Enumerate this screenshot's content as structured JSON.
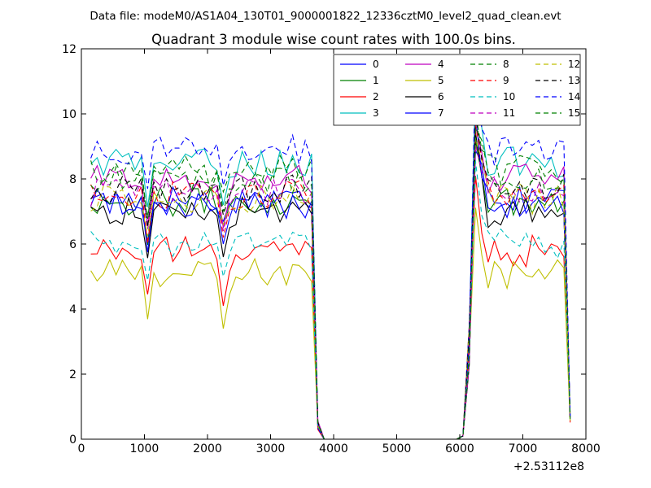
{
  "chart_data": {
    "type": "line",
    "suptitle": "Data file: modeM0/AS1A04_130T01_9000001822_12336cztM0_level2_quad_clean.evt",
    "title": "Quadrant 3 module wise count rates with 100.0s bins.",
    "xlabel": "",
    "ylabel": "",
    "x_offset_label": "+2.53112e8",
    "xlim": [
      0,
      8000
    ],
    "ylim": [
      0,
      12
    ],
    "xticks": [
      0,
      1000,
      2000,
      3000,
      4000,
      5000,
      6000,
      7000,
      8000
    ],
    "yticks": [
      0,
      2,
      4,
      6,
      8,
      10,
      12
    ],
    "legend_position": "top-right",
    "legend_columns": 4,
    "x": [
      150,
      250,
      350,
      450,
      550,
      650,
      750,
      850,
      950,
      1050,
      1150,
      1250,
      1350,
      1450,
      1550,
      1650,
      1750,
      1850,
      1950,
      2050,
      2150,
      2250,
      2350,
      2450,
      2550,
      2650,
      2750,
      2850,
      2950,
      3050,
      3150,
      3250,
      3350,
      3450,
      3550,
      3650,
      3750,
      3850,
      3950,
      4050,
      4150,
      4250,
      4350,
      4450,
      4550,
      4650,
      4750,
      4850,
      4950,
      5050,
      5150,
      5250,
      5350,
      5450,
      5550,
      5650,
      5750,
      5850,
      5950,
      6050,
      6150,
      6250,
      6350,
      6450,
      6550,
      6650,
      6750,
      6850,
      6950,
      7050,
      7150,
      7250,
      7350,
      7450,
      7550,
      7650,
      7750
    ],
    "series": [
      {
        "name": "0",
        "color": "#0000ff",
        "dashed": false,
        "base": 7.4,
        "dip": 6.7
      },
      {
        "name": "1",
        "color": "#008000",
        "dashed": false,
        "base": 7.3,
        "dip": 6.6
      },
      {
        "name": "2",
        "color": "#ff0000",
        "dashed": false,
        "base": 5.8,
        "dip": 4.1
      },
      {
        "name": "3",
        "color": "#00bfbf",
        "dashed": false,
        "base": 8.5,
        "dip": 7.2
      },
      {
        "name": "4",
        "color": "#bf00bf",
        "dashed": false,
        "base": 8.0,
        "dip": 6.5
      },
      {
        "name": "5",
        "color": "#bfbf00",
        "dashed": false,
        "base": 5.1,
        "dip": 3.4
      },
      {
        "name": "6",
        "color": "#000000",
        "dashed": false,
        "base": 7.0,
        "dip": 5.6
      },
      {
        "name": "7",
        "color": "#0000ff",
        "dashed": false,
        "base": 7.2,
        "dip": 6.0
      },
      {
        "name": "8",
        "color": "#008000",
        "dashed": true,
        "base": 8.3,
        "dip": 7.6
      },
      {
        "name": "9",
        "color": "#ff0000",
        "dashed": true,
        "base": 7.5,
        "dip": 6.2
      },
      {
        "name": "10",
        "color": "#00bfbf",
        "dashed": true,
        "base": 6.0,
        "dip": 5.0
      },
      {
        "name": "11",
        "color": "#bf00bf",
        "dashed": true,
        "base": 7.6,
        "dip": 6.4
      },
      {
        "name": "12",
        "color": "#bfbf00",
        "dashed": true,
        "base": 7.4,
        "dip": 6.6
      },
      {
        "name": "13",
        "color": "#000000",
        "dashed": true,
        "base": 7.7,
        "dip": 6.9
      },
      {
        "name": "14",
        "color": "#0000ff",
        "dashed": true,
        "base": 8.9,
        "dip": 7.8
      },
      {
        "name": "15",
        "color": "#008000",
        "dashed": true,
        "base": 8.0,
        "dip": 7.0
      }
    ]
  }
}
